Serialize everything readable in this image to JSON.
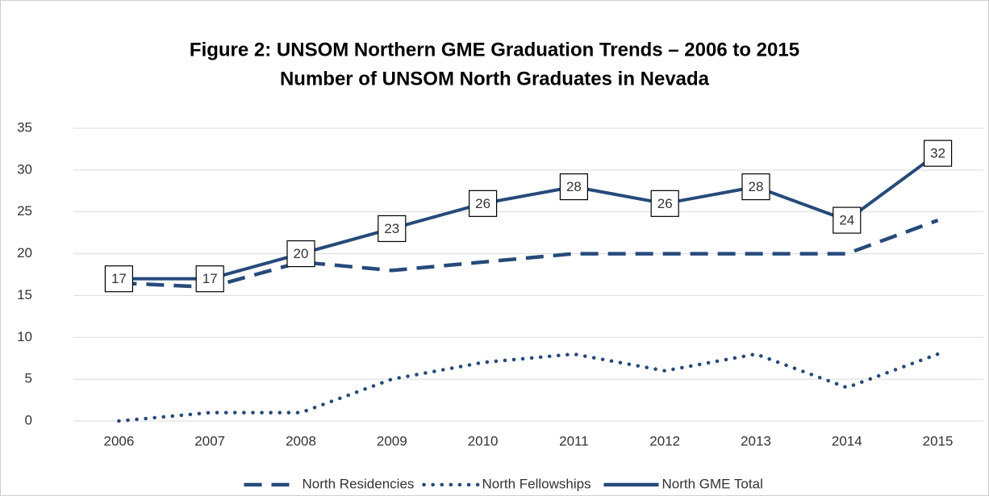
{
  "chart_data": {
    "type": "line",
    "title": "Figure 2:  UNSOM Northern GME Graduation Trends – 2006 to 2015",
    "subtitle": "Number of UNSOM North Graduates in Nevada",
    "categories": [
      "2006",
      "2007",
      "2008",
      "2009",
      "2010",
      "2011",
      "2012",
      "2013",
      "2014",
      "2015"
    ],
    "series": [
      {
        "name": "North Residencies",
        "color": "#264a7a",
        "dash": "dash",
        "values": [
          16.5,
          16,
          19,
          18,
          19,
          20,
          20,
          20,
          20,
          24
        ]
      },
      {
        "name": "North Fellowships",
        "color": "#264a7a",
        "dash": "dot",
        "values": [
          0,
          1,
          1,
          5,
          7,
          8,
          6,
          8,
          4,
          8
        ]
      },
      {
        "name": "North GME Total",
        "color": "#264a7a",
        "dash": "solid",
        "values": [
          17,
          17,
          20,
          23,
          26,
          28,
          26,
          28,
          24,
          32
        ],
        "data_labels": true
      }
    ],
    "ylim": [
      0,
      35
    ],
    "yticks": [
      0,
      5,
      10,
      15,
      20,
      25,
      30,
      35
    ],
    "grid": true,
    "legend": "bottom"
  }
}
